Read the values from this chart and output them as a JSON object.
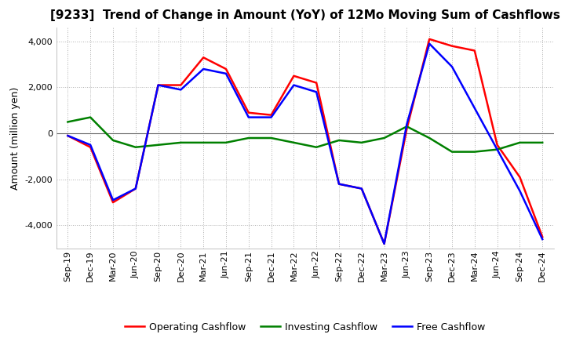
{
  "title": "[9233]  Trend of Change in Amount (YoY) of 12Mo Moving Sum of Cashflows",
  "ylabel": "Amount (million yen)",
  "x_labels": [
    "Sep-19",
    "Dec-19",
    "Mar-20",
    "Jun-20",
    "Sep-20",
    "Dec-20",
    "Mar-21",
    "Jun-21",
    "Sep-21",
    "Dec-21",
    "Mar-22",
    "Jun-22",
    "Sep-22",
    "Dec-22",
    "Mar-23",
    "Jun-23",
    "Sep-23",
    "Dec-23",
    "Mar-24",
    "Jun-24",
    "Sep-24",
    "Dec-24"
  ],
  "operating": [
    -100,
    -600,
    -3000,
    -2400,
    2100,
    2100,
    3300,
    2800,
    900,
    800,
    2500,
    2200,
    -2200,
    -2400,
    -4800,
    200,
    4100,
    3800,
    3600,
    -500,
    -1900,
    -4500
  ],
  "investing": [
    500,
    700,
    -300,
    -600,
    -500,
    -400,
    -400,
    -400,
    -200,
    -200,
    -400,
    -600,
    -300,
    -400,
    -200,
    300,
    -200,
    -800,
    -800,
    -700,
    -400,
    -400
  ],
  "free": [
    -100,
    -500,
    -2900,
    -2400,
    2100,
    1900,
    2800,
    2600,
    700,
    700,
    2100,
    1800,
    -2200,
    -2400,
    -4800,
    400,
    3900,
    2900,
    1100,
    -700,
    -2500,
    -4600
  ],
  "ylim": [
    -5000,
    4600
  ],
  "yticks": [
    -4000,
    -2000,
    0,
    2000,
    4000
  ],
  "operating_color": "#ff0000",
  "investing_color": "#008000",
  "free_color": "#0000ff",
  "background_color": "#ffffff",
  "grid_color": "#b0b0b0",
  "title_fontsize": 11,
  "label_fontsize": 9,
  "tick_fontsize": 8,
  "legend_fontsize": 9,
  "linewidth": 1.8
}
